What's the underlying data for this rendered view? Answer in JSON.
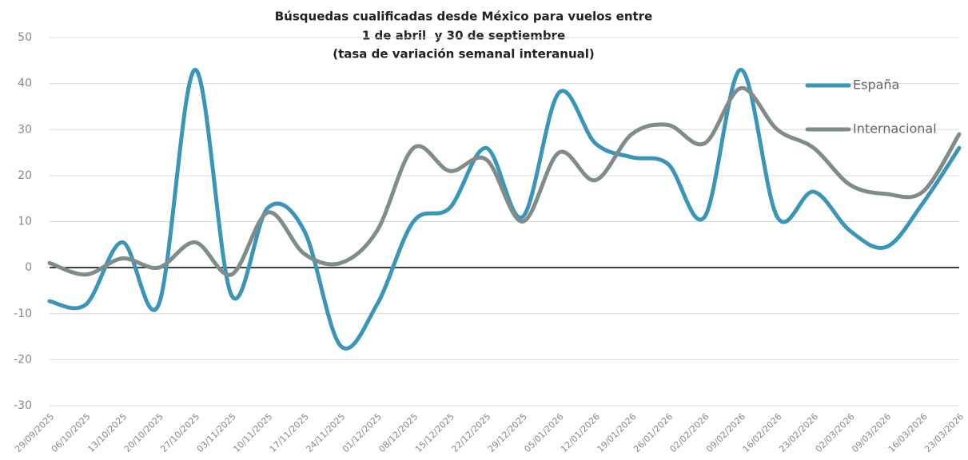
{
  "chart_data": {
    "type": "line",
    "title": [
      "Búsquedas cualificadas desde México para vuelos entre",
      "1 de abril  y 30 de septiembre",
      "(tasa de variación semanal interanual)"
    ],
    "categories": [
      "29/09/2025",
      "06/10/2025",
      "13/10/2025",
      "20/10/2025",
      "27/10/2025",
      "03/11/2025",
      "10/11/2025",
      "17/11/2025",
      "24/11/2025",
      "01/12/2025",
      "08/12/2025",
      "15/12/2025",
      "22/12/2025",
      "29/12/2025",
      "05/01/2026",
      "12/01/2026",
      "19/01/2026",
      "26/01/2026",
      "02/02/2026",
      "09/02/2026",
      "16/02/2026",
      "23/02/2026",
      "02/03/2026",
      "09/03/2026",
      "16/03/2026",
      "23/03/2026"
    ],
    "series": [
      {
        "name": "España",
        "color": "#3a96b8",
        "values": [
          -7.3,
          -8,
          5.5,
          -8,
          43,
          -6,
          13,
          8,
          -17,
          -8,
          10,
          13,
          26,
          11,
          38,
          27,
          24,
          22.5,
          11,
          43,
          11,
          16.5,
          8,
          4.5,
          14,
          26
        ]
      },
      {
        "name": "Internacional",
        "color": "#7f8c8c",
        "values": [
          1,
          -1.5,
          2,
          0,
          5.5,
          -1.5,
          12,
          3,
          1,
          8,
          26,
          21,
          23.5,
          10,
          25,
          19,
          29,
          31,
          27,
          39,
          30,
          26,
          18,
          16,
          16.5,
          29
        ]
      }
    ],
    "ylim": [
      -30,
      50
    ],
    "yticks": [
      50,
      40,
      30,
      20,
      10,
      0,
      -10,
      -20,
      -30
    ],
    "grid": true,
    "negative_tick_color": "#e0403a",
    "legend": "upper right"
  }
}
